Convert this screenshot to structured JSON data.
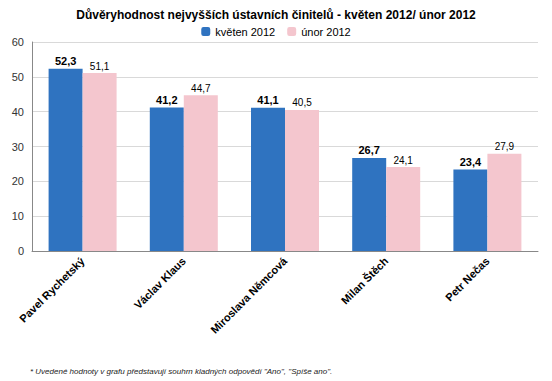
{
  "chart_data": {
    "type": "bar",
    "title": "Důvěryhodnost nejvyšších ústavních činitelů - květen 2012/ únor 2012",
    "categories": [
      "Pavel Rychetský",
      "Václav Klaus",
      "Miroslava Němcová",
      "Milan Štěch",
      "Petr Nečas"
    ],
    "series": [
      {
        "name": "květen 2012",
        "color": "#2f73c0",
        "values": [
          52.3,
          41.2,
          41.1,
          26.7,
          23.4
        ],
        "value_labels": [
          "52,3",
          "41,2",
          "41,1",
          "26,7",
          "23,4"
        ]
      },
      {
        "name": "únor 2012",
        "color": "#f4c6ce",
        "values": [
          51.1,
          44.7,
          40.5,
          24.1,
          27.9
        ],
        "value_labels": [
          "51,1",
          "44,7",
          "40,5",
          "24,1",
          "27,9"
        ]
      }
    ],
    "ylim": [
      0,
      60
    ],
    "yticks": [
      0,
      10,
      20,
      30,
      40,
      50,
      60
    ],
    "grid": true,
    "legend": "top",
    "data_labels": true,
    "annotations": [
      "* Uvedené hodnoty v grafu představují souhrn kladných odpovědí \"Ano\", \"Spíše ano\"."
    ]
  }
}
